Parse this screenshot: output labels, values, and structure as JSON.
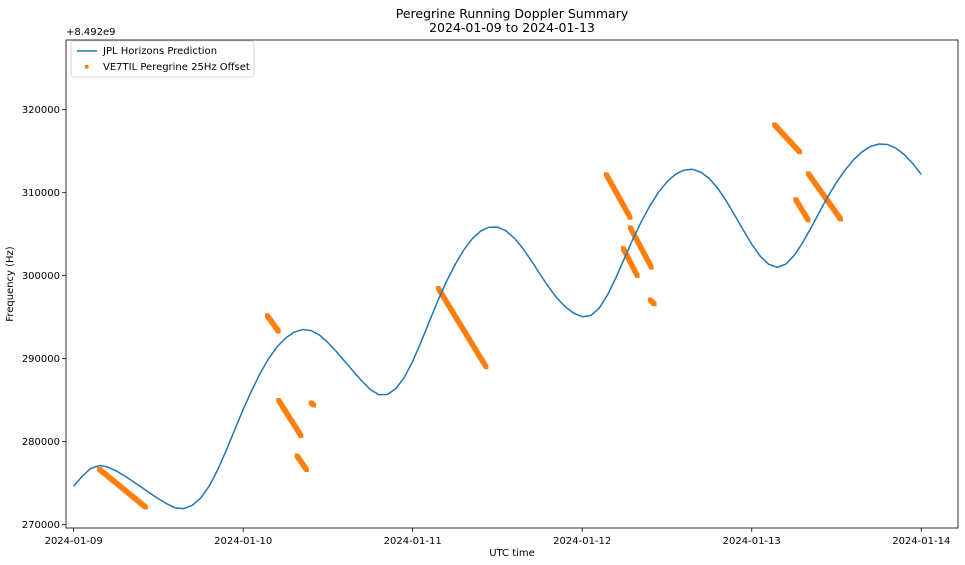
{
  "chart_data": {
    "type": "line",
    "title": "Peregrine Running Doppler Summary",
    "subtitle": "2024-01-09 to 2024-01-13",
    "xlabel": "UTC time",
    "ylabel": "Frequency (Hz)",
    "y_offset_label": "+8.492e9",
    "x_ticks": [
      "2024-01-09",
      "2024-01-10",
      "2024-01-11",
      "2024-01-12",
      "2024-01-13",
      "2024-01-14"
    ],
    "y_ticks": [
      "270000",
      "280000",
      "290000",
      "300000",
      "310000",
      "320000"
    ],
    "xlim": [
      "2024-01-08 22:55",
      "2024-01-14 05:12"
    ],
    "ylim": [
      269600,
      328400
    ],
    "legend_position": "top-left",
    "grid": false,
    "colors": {
      "prediction": "#1f77b4",
      "observed": "#ff7f0e"
    },
    "series": [
      {
        "name": "JPL Horizons Prediction",
        "kind": "line",
        "x": [
          "2024-01-09 00:00",
          "2024-01-09 01:12",
          "2024-01-09 02:24",
          "2024-01-09 03:36",
          "2024-01-09 04:48",
          "2024-01-09 06:00",
          "2024-01-09 07:12",
          "2024-01-09 08:24",
          "2024-01-09 09:36",
          "2024-01-09 10:48",
          "2024-01-09 12:00",
          "2024-01-09 13:12",
          "2024-01-09 14:24",
          "2024-01-09 15:36",
          "2024-01-09 16:48",
          "2024-01-09 18:00",
          "2024-01-09 19:12",
          "2024-01-09 20:24",
          "2024-01-09 21:36",
          "2024-01-09 22:48",
          "2024-01-10 00:00",
          "2024-01-10 01:12",
          "2024-01-10 02:24",
          "2024-01-10 03:36",
          "2024-01-10 04:48",
          "2024-01-10 06:00",
          "2024-01-10 07:12",
          "2024-01-10 08:24",
          "2024-01-10 09:36",
          "2024-01-10 10:48",
          "2024-01-10 12:00",
          "2024-01-10 13:12",
          "2024-01-10 14:24",
          "2024-01-10 15:36",
          "2024-01-10 16:48",
          "2024-01-10 18:00",
          "2024-01-10 19:12",
          "2024-01-10 20:24",
          "2024-01-10 21:36",
          "2024-01-10 22:48",
          "2024-01-11 00:00",
          "2024-01-11 01:12",
          "2024-01-11 02:24",
          "2024-01-11 03:36",
          "2024-01-11 04:48",
          "2024-01-11 06:00",
          "2024-01-11 07:12",
          "2024-01-11 08:24",
          "2024-01-11 09:36",
          "2024-01-11 10:48",
          "2024-01-11 12:00",
          "2024-01-11 13:12",
          "2024-01-11 14:24",
          "2024-01-11 15:36",
          "2024-01-11 16:48",
          "2024-01-11 18:00",
          "2024-01-11 19:12",
          "2024-01-11 20:24",
          "2024-01-11 21:36",
          "2024-01-11 22:48",
          "2024-01-12 00:00",
          "2024-01-12 01:12",
          "2024-01-12 02:24",
          "2024-01-12 03:36",
          "2024-01-12 04:48",
          "2024-01-12 06:00",
          "2024-01-12 07:12",
          "2024-01-12 08:24",
          "2024-01-12 09:36",
          "2024-01-12 10:48",
          "2024-01-12 12:00",
          "2024-01-12 13:12",
          "2024-01-12 14:24",
          "2024-01-12 15:36",
          "2024-01-12 16:48",
          "2024-01-12 18:00",
          "2024-01-12 19:12",
          "2024-01-12 20:24",
          "2024-01-12 21:36",
          "2024-01-12 22:48",
          "2024-01-13 00:00",
          "2024-01-13 01:12",
          "2024-01-13 02:24",
          "2024-01-13 03:36",
          "2024-01-13 04:48",
          "2024-01-13 06:00",
          "2024-01-13 07:12",
          "2024-01-13 08:24",
          "2024-01-13 09:36",
          "2024-01-13 10:48",
          "2024-01-13 12:00",
          "2024-01-13 13:12",
          "2024-01-13 14:24",
          "2024-01-13 15:36",
          "2024-01-13 16:48",
          "2024-01-13 18:00",
          "2024-01-13 19:12",
          "2024-01-13 20:24",
          "2024-01-13 21:36",
          "2024-01-13 22:48",
          "2024-01-14 00:00"
        ],
        "y": [
          274626,
          275829,
          276770,
          277125,
          276960,
          276490,
          275876,
          275208,
          274504,
          273804,
          273123,
          272512,
          272019,
          271940,
          272338,
          273223,
          274668,
          276620,
          278941,
          281433,
          283888,
          286163,
          288226,
          290004,
          291438,
          292476,
          293181,
          293512,
          293400,
          292846,
          291938,
          290848,
          289657,
          288455,
          287311,
          286293,
          285661,
          285692,
          286378,
          287726,
          289688,
          292046,
          294579,
          297065,
          299333,
          301328,
          303064,
          304428,
          305362,
          305845,
          305854,
          305402,
          304518,
          303278,
          301800,
          300223,
          298682,
          297332,
          296252,
          295476,
          295058,
          295198,
          296087,
          297706,
          299810,
          302139,
          304450,
          306567,
          308453,
          310046,
          311310,
          312212,
          312725,
          312821,
          312479,
          311697,
          310512,
          309004,
          307270,
          305501,
          303789,
          302356,
          301371,
          301020,
          301382,
          302441,
          303967,
          305783,
          307705,
          309566,
          311250,
          312718,
          313950,
          314912,
          315565,
          315873,
          315811,
          315375,
          314588,
          313512,
          312212
        ]
      },
      {
        "name": "VE7TIL Peregrine 25Hz Offset",
        "kind": "scatter",
        "segments": [
          {
            "x_start": "2024-01-09 03:36",
            "x_end": "2024-01-09 10:12",
            "y_start": 276700,
            "y_end": 272100
          },
          {
            "x_start": "2024-01-10 03:24",
            "x_end": "2024-01-10 05:00",
            "y_start": 295200,
            "y_end": 293300
          },
          {
            "x_start": "2024-01-10 05:00",
            "x_end": "2024-01-10 08:12",
            "y_start": 285000,
            "y_end": 280700
          },
          {
            "x_start": "2024-01-10 07:36",
            "x_end": "2024-01-10 09:00",
            "y_start": 278300,
            "y_end": 276600
          },
          {
            "x_start": "2024-01-10 09:36",
            "x_end": "2024-01-10 10:00",
            "y_start": 284700,
            "y_end": 284400
          },
          {
            "x_start": "2024-01-11 03:36",
            "x_end": "2024-01-11 10:24",
            "y_start": 298500,
            "y_end": 289000
          },
          {
            "x_start": "2024-01-12 03:24",
            "x_end": "2024-01-12 06:48",
            "y_start": 312200,
            "y_end": 307000
          },
          {
            "x_start": "2024-01-12 06:48",
            "x_end": "2024-01-12 09:48",
            "y_start": 305800,
            "y_end": 301000
          },
          {
            "x_start": "2024-01-12 05:48",
            "x_end": "2024-01-12 07:48",
            "y_start": 303300,
            "y_end": 300000
          },
          {
            "x_start": "2024-01-12 09:36",
            "x_end": "2024-01-12 10:12",
            "y_start": 297100,
            "y_end": 296600
          },
          {
            "x_start": "2024-01-13 03:12",
            "x_end": "2024-01-13 06:48",
            "y_start": 318200,
            "y_end": 314900
          },
          {
            "x_start": "2024-01-13 06:12",
            "x_end": "2024-01-13 08:00",
            "y_start": 309200,
            "y_end": 306700
          },
          {
            "x_start": "2024-01-13 08:00",
            "x_end": "2024-01-13 12:36",
            "y_start": 312300,
            "y_end": 306800
          }
        ]
      }
    ]
  }
}
